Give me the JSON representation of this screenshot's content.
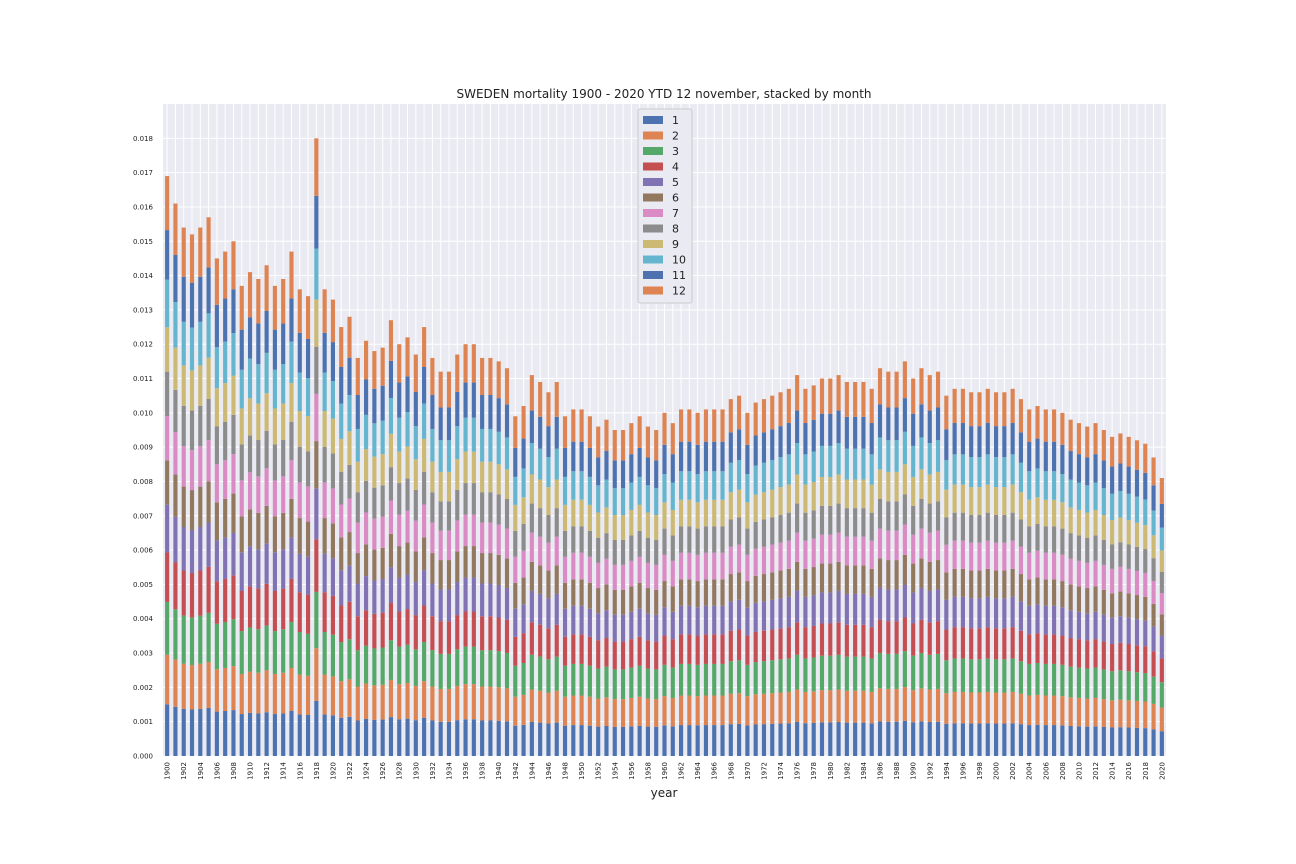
{
  "chart_data": {
    "type": "bar",
    "stacked": true,
    "title": "SWEDEN mortality 1900 - 2020 YTD 12 november, stacked by month",
    "xlabel": "year",
    "ylabel": "",
    "ylim": [
      0,
      0.019
    ],
    "yticks": [
      0.0,
      0.001,
      0.002,
      0.003,
      0.004,
      0.005,
      0.006,
      0.007,
      0.008,
      0.009,
      0.01,
      0.011,
      0.012,
      0.013,
      0.014,
      0.015,
      0.016,
      0.017,
      0.018
    ],
    "ytick_labels": [
      "0.000",
      "0.001",
      "0.002",
      "0.003",
      "0.004",
      "0.005",
      "0.006",
      "0.007",
      "0.008",
      "0.009",
      "0.010",
      "0.011",
      "0.012",
      "0.013",
      "0.014",
      "0.015",
      "0.016",
      "0.017",
      "0.018"
    ],
    "year_start": 1900,
    "year_end": 2020,
    "xtick_step": 2,
    "legend_labels": [
      "1",
      "2",
      "3",
      "4",
      "5",
      "6",
      "7",
      "8",
      "9",
      "10",
      "11",
      "12"
    ],
    "series_colors": [
      "#4c72b0",
      "#dd8452",
      "#55a868",
      "#c44e52",
      "#8172b3",
      "#937860",
      "#da8bc3",
      "#8c8c8c",
      "#ccb974",
      "#64b5cd",
      "#4c72b0",
      "#dd8452"
    ],
    "month_shares": [
      0.091,
      0.087,
      0.093,
      0.087,
      0.084,
      0.078,
      0.078,
      0.078,
      0.078,
      0.084,
      0.087,
      0.095
    ],
    "annual_totals": {
      "1900": 0.0169,
      "1901": 0.0161,
      "1902": 0.0154,
      "1903": 0.0152,
      "1904": 0.0154,
      "1905": 0.0157,
      "1906": 0.0145,
      "1907": 0.0147,
      "1908": 0.015,
      "1909": 0.0137,
      "1910": 0.0141,
      "1911": 0.0139,
      "1912": 0.0143,
      "1913": 0.0137,
      "1914": 0.0139,
      "1915": 0.0147,
      "1916": 0.0136,
      "1917": 0.0134,
      "1918": 0.018,
      "1919": 0.0136,
      "1920": 0.0133,
      "1921": 0.0125,
      "1922": 0.0128,
      "1923": 0.0116,
      "1924": 0.0121,
      "1925": 0.0118,
      "1926": 0.0119,
      "1927": 0.0127,
      "1928": 0.012,
      "1929": 0.0122,
      "1930": 0.0117,
      "1931": 0.0125,
      "1932": 0.0116,
      "1933": 0.0112,
      "1934": 0.0112,
      "1935": 0.0117,
      "1936": 0.012,
      "1937": 0.012,
      "1938": 0.0116,
      "1939": 0.0116,
      "1940": 0.0115,
      "1941": 0.0113,
      "1942": 0.0099,
      "1943": 0.0102,
      "1944": 0.0111,
      "1945": 0.0109,
      "1946": 0.0106,
      "1947": 0.0109,
      "1948": 0.0099,
      "1949": 0.0101,
      "1950": 0.0101,
      "1951": 0.0099,
      "1952": 0.0096,
      "1953": 0.0098,
      "1954": 0.0095,
      "1955": 0.0095,
      "1956": 0.0097,
      "1957": 0.0099,
      "1958": 0.0096,
      "1959": 0.0095,
      "1960": 0.01,
      "1961": 0.0097,
      "1962": 0.0101,
      "1963": 0.0101,
      "1964": 0.01,
      "1965": 0.0101,
      "1966": 0.0101,
      "1967": 0.0101,
      "1968": 0.0104,
      "1969": 0.0105,
      "1970": 0.01,
      "1971": 0.0103,
      "1972": 0.0104,
      "1973": 0.0105,
      "1974": 0.0106,
      "1975": 0.0107,
      "1976": 0.0111,
      "1977": 0.0107,
      "1978": 0.0108,
      "1979": 0.011,
      "1980": 0.011,
      "1981": 0.0111,
      "1982": 0.0109,
      "1983": 0.0109,
      "1984": 0.0109,
      "1985": 0.0107,
      "1986": 0.0113,
      "1987": 0.0112,
      "1988": 0.0112,
      "1989": 0.0115,
      "1990": 0.011,
      "1991": 0.0113,
      "1992": 0.0111,
      "1993": 0.0112,
      "1994": 0.0105,
      "1995": 0.0107,
      "1996": 0.0107,
      "1997": 0.0106,
      "1998": 0.0106,
      "1999": 0.0107,
      "2000": 0.0106,
      "2001": 0.0106,
      "2002": 0.0107,
      "2003": 0.0104,
      "2004": 0.0101,
      "2005": 0.0102,
      "2006": 0.0101,
      "2007": 0.0101,
      "2008": 0.01,
      "2009": 0.0098,
      "2010": 0.0097,
      "2011": 0.0096,
      "2012": 0.0097,
      "2013": 0.0095,
      "2014": 0.0093,
      "2015": 0.0094,
      "2016": 0.0093,
      "2017": 0.0092,
      "2018": 0.0091,
      "2019": 0.0087,
      "2020": 0.0081
    }
  }
}
